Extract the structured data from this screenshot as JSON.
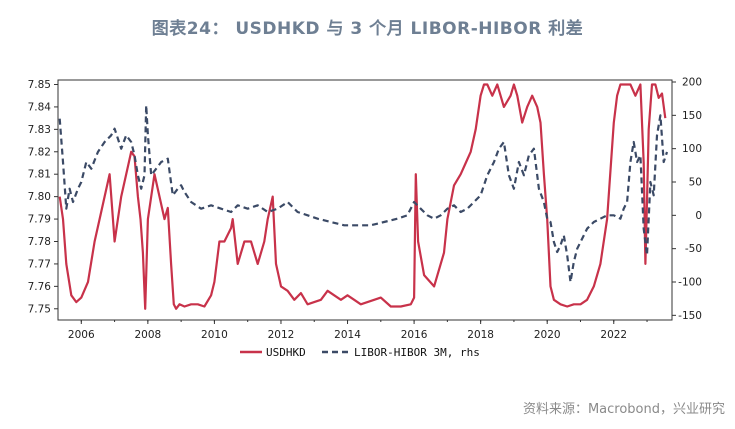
{
  "title": "图表24： USDHKD 与 3 个月 LIBOR-HIBOR 利差",
  "source": "资料来源：Macrobond，兴业研究",
  "colors": {
    "usdhkd": "#c8324a",
    "spread": "#3b4a66",
    "title": "#6e7f93"
  },
  "chart_data": {
    "type": "line",
    "x_ticks": [
      "2006",
      "2008",
      "2010",
      "2012",
      "2014",
      "2016",
      "2018",
      "2020",
      "2022"
    ],
    "xlim": [
      2005.3,
      2023.75
    ],
    "y_left": {
      "lim": [
        7.745,
        7.852
      ],
      "ticks": [
        "7.75",
        "7.76",
        "7.77",
        "7.78",
        "7.79",
        "7.80",
        "7.81",
        "7.82",
        "7.83",
        "7.84",
        "7.85"
      ]
    },
    "y_right": {
      "lim": [
        -157,
        203
      ],
      "ticks": [
        "-150",
        "-100",
        "-50",
        "0",
        "50",
        "100",
        "150",
        "200"
      ]
    },
    "grid": false,
    "legend_position": "bottom-center",
    "series": [
      {
        "name": "USDHKD",
        "axis": "left",
        "x": [
          2005.35,
          2005.45,
          2005.55,
          2005.7,
          2005.85,
          2006.0,
          2006.2,
          2006.4,
          2006.55,
          2006.7,
          2006.85,
          2007.0,
          2007.2,
          2007.35,
          2007.5,
          2007.6,
          2007.7,
          2007.78,
          2007.85,
          2007.92,
          2008.0,
          2008.1,
          2008.2,
          2008.35,
          2008.5,
          2008.6,
          2008.7,
          2008.78,
          2008.85,
          2008.95,
          2009.1,
          2009.3,
          2009.5,
          2009.7,
          2009.9,
          2010.0,
          2010.15,
          2010.3,
          2010.5,
          2010.55,
          2010.7,
          2010.9,
          2011.1,
          2011.3,
          2011.5,
          2011.6,
          2011.75,
          2011.85,
          2012.0,
          2012.2,
          2012.4,
          2012.6,
          2012.8,
          2013.0,
          2013.2,
          2013.4,
          2013.6,
          2013.8,
          2014.0,
          2014.2,
          2014.4,
          2014.6,
          2014.8,
          2015.0,
          2015.3,
          2015.6,
          2015.9,
          2016.0,
          2016.05,
          2016.12,
          2016.3,
          2016.6,
          2016.9,
          2017.0,
          2017.2,
          2017.4,
          2017.55,
          2017.7,
          2017.85,
          2018.0,
          2018.1,
          2018.2,
          2018.35,
          2018.5,
          2018.7,
          2018.9,
          2019.0,
          2019.1,
          2019.25,
          2019.4,
          2019.55,
          2019.7,
          2019.8,
          2019.9,
          2020.0,
          2020.1,
          2020.2,
          2020.4,
          2020.6,
          2020.8,
          2021.0,
          2021.2,
          2021.4,
          2021.6,
          2021.8,
          2022.0,
          2022.1,
          2022.2,
          2022.35,
          2022.5,
          2022.65,
          2022.8,
          2022.9,
          2022.95,
          2023.0,
          2023.05,
          2023.15,
          2023.25,
          2023.35,
          2023.45,
          2023.55
        ],
        "y": [
          7.8,
          7.79,
          7.77,
          7.756,
          7.753,
          7.755,
          7.762,
          7.78,
          7.79,
          7.8,
          7.81,
          7.78,
          7.8,
          7.81,
          7.82,
          7.818,
          7.8,
          7.79,
          7.775,
          7.75,
          7.79,
          7.8,
          7.81,
          7.8,
          7.79,
          7.795,
          7.77,
          7.752,
          7.75,
          7.752,
          7.751,
          7.752,
          7.752,
          7.751,
          7.756,
          7.762,
          7.78,
          7.78,
          7.786,
          7.79,
          7.77,
          7.78,
          7.78,
          7.77,
          7.78,
          7.79,
          7.8,
          7.77,
          7.76,
          7.758,
          7.754,
          7.757,
          7.752,
          7.753,
          7.754,
          7.758,
          7.756,
          7.754,
          7.756,
          7.754,
          7.752,
          7.753,
          7.754,
          7.755,
          7.751,
          7.751,
          7.752,
          7.755,
          7.81,
          7.78,
          7.765,
          7.76,
          7.775,
          7.79,
          7.805,
          7.81,
          7.815,
          7.82,
          7.83,
          7.845,
          7.85,
          7.85,
          7.845,
          7.85,
          7.84,
          7.845,
          7.85,
          7.845,
          7.833,
          7.84,
          7.845,
          7.84,
          7.833,
          7.81,
          7.79,
          7.76,
          7.754,
          7.752,
          7.751,
          7.752,
          7.752,
          7.754,
          7.76,
          7.77,
          7.79,
          7.833,
          7.845,
          7.85,
          7.85,
          7.85,
          7.845,
          7.85,
          7.815,
          7.77,
          7.798,
          7.83,
          7.85,
          7.85,
          7.844,
          7.846,
          7.835
        ]
      },
      {
        "name": "LIBOR-HIBOR 3M, rhs",
        "axis": "right",
        "x": [
          2005.35,
          2005.45,
          2005.55,
          2005.65,
          2005.75,
          2005.9,
          2006.0,
          2006.15,
          2006.3,
          2006.5,
          2006.7,
          2006.9,
          2007.0,
          2007.2,
          2007.35,
          2007.5,
          2007.6,
          2007.7,
          2007.8,
          2007.9,
          2007.95,
          2008.0,
          2008.1,
          2008.25,
          2008.4,
          2008.6,
          2008.75,
          2008.9,
          2009.0,
          2009.1,
          2009.3,
          2009.6,
          2009.9,
          2010.2,
          2010.5,
          2010.7,
          2011.0,
          2011.3,
          2011.6,
          2011.9,
          2012.2,
          2012.5,
          2012.8,
          2013.1,
          2013.5,
          2013.9,
          2014.3,
          2014.7,
          2015.1,
          2015.5,
          2015.8,
          2016.0,
          2016.2,
          2016.4,
          2016.6,
          2016.8,
          2017.0,
          2017.2,
          2017.4,
          2017.6,
          2017.8,
          2018.0,
          2018.2,
          2018.4,
          2018.55,
          2018.7,
          2018.85,
          2019.0,
          2019.15,
          2019.3,
          2019.45,
          2019.6,
          2019.75,
          2019.9,
          2020.0,
          2020.1,
          2020.2,
          2020.3,
          2020.4,
          2020.5,
          2020.6,
          2020.7,
          2020.8,
          2020.9,
          2021.0,
          2021.2,
          2021.4,
          2021.6,
          2021.8,
          2022.0,
          2022.2,
          2022.3,
          2022.4,
          2022.5,
          2022.6,
          2022.7,
          2022.8,
          2022.9,
          2023.0,
          2023.1,
          2023.2,
          2023.3,
          2023.4,
          2023.5,
          2023.6
        ],
        "y": [
          145,
          80,
          10,
          40,
          20,
          40,
          50,
          80,
          70,
          95,
          110,
          120,
          130,
          100,
          120,
          110,
          90,
          60,
          40,
          60,
          165,
          120,
          60,
          70,
          80,
          85,
          30,
          40,
          45,
          35,
          20,
          10,
          15,
          10,
          5,
          15,
          10,
          15,
          5,
          10,
          20,
          5,
          0,
          -5,
          -10,
          -15,
          -15,
          -15,
          -10,
          -5,
          0,
          20,
          10,
          0,
          -5,
          0,
          10,
          15,
          5,
          10,
          20,
          30,
          60,
          80,
          100,
          110,
          60,
          40,
          80,
          60,
          90,
          100,
          40,
          20,
          -5,
          -10,
          -40,
          -55,
          -45,
          -30,
          -60,
          -100,
          -70,
          -50,
          -40,
          -20,
          -10,
          -5,
          0,
          0,
          -5,
          10,
          20,
          80,
          110,
          80,
          90,
          -20,
          -60,
          50,
          30,
          120,
          150,
          80,
          95
        ]
      }
    ]
  }
}
